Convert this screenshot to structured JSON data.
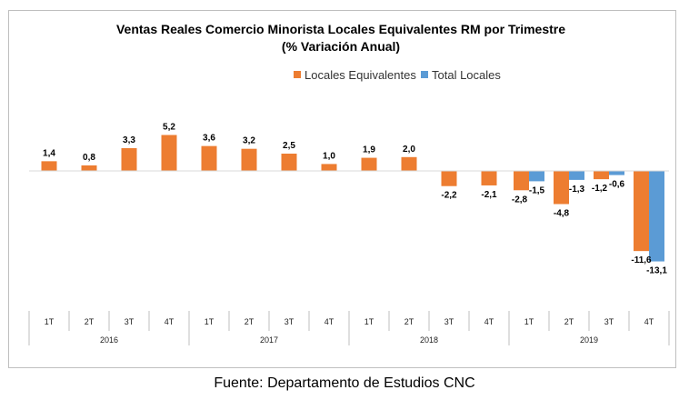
{
  "chart_data": {
    "type": "bar",
    "title": "Ventas Reales Comercio Minorista Locales Equivalentes RM por Trimestre",
    "subtitle": "(% Variación Anual)",
    "legend_position": "top-center",
    "grid": false,
    "ylim": [
      -14,
      6
    ],
    "quarters": [
      "1T",
      "2T",
      "3T",
      "4T",
      "1T",
      "2T",
      "3T",
      "4T",
      "1T",
      "2T",
      "3T",
      "4T",
      "1T",
      "2T",
      "3T",
      "4T"
    ],
    "years": [
      "2016",
      "2017",
      "2018",
      "2019"
    ],
    "series": [
      {
        "name": "Locales Equivalentes",
        "color": "#ED7D31",
        "values": [
          1.4,
          0.8,
          3.3,
          5.2,
          3.6,
          3.2,
          2.5,
          1.0,
          1.9,
          2.0,
          -2.2,
          -2.1,
          -2.8,
          -4.8,
          -1.2,
          -11.6
        ],
        "labels": [
          "1,4",
          "0,8",
          "3,3",
          "5,2",
          "3,6",
          "3,2",
          "2,5",
          "1,0",
          "1,9",
          "2,0",
          "-2,2",
          "-2,1",
          "-2,8",
          "-4,8",
          "-1,2",
          "-11,6"
        ]
      },
      {
        "name": "Total Locales",
        "color": "#5B9BD5",
        "values": [
          null,
          null,
          null,
          null,
          null,
          null,
          null,
          null,
          null,
          null,
          null,
          null,
          -1.5,
          -1.3,
          -0.6,
          -13.1
        ],
        "labels": [
          "",
          "",
          "",
          "",
          "",
          "",
          "",
          "",
          "",
          "",
          "",
          "",
          "-1,5",
          "-1,3",
          "-0,6",
          "-13,1"
        ]
      }
    ]
  },
  "source_text": "Fuente: Departamento de Estudios CNC"
}
